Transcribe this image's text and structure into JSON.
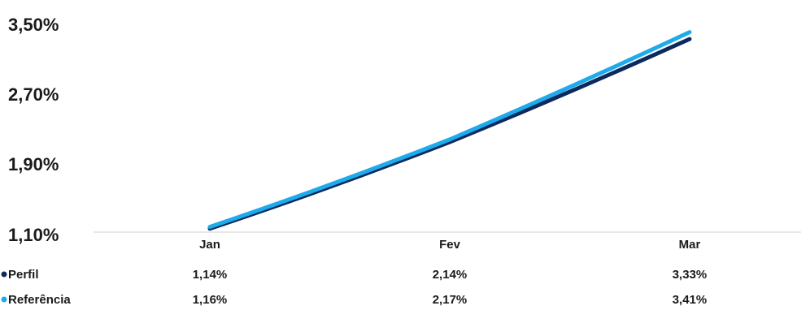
{
  "chart_data": {
    "type": "line",
    "categories": [
      "Jan",
      "Fev",
      "Mar"
    ],
    "y_tick_labels": [
      "3,50%",
      "2,70%",
      "1,90%",
      "1,10%"
    ],
    "y_ticks": [
      3.5,
      2.7,
      1.9,
      1.1
    ],
    "ylim": [
      1.1,
      3.5
    ],
    "grid": false,
    "legend": "data-table-below",
    "series": [
      {
        "name": "Perfil",
        "values": [
          1.14,
          2.14,
          3.33
        ],
        "labels": [
          "1,14%",
          "2,14%",
          "3,33%"
        ],
        "color": "#0d2a5c"
      },
      {
        "name": "Referência",
        "values": [
          1.16,
          2.17,
          3.41
        ],
        "labels": [
          "1,16%",
          "2,17%",
          "3,41%"
        ],
        "color": "#1eaaeb"
      }
    ]
  }
}
